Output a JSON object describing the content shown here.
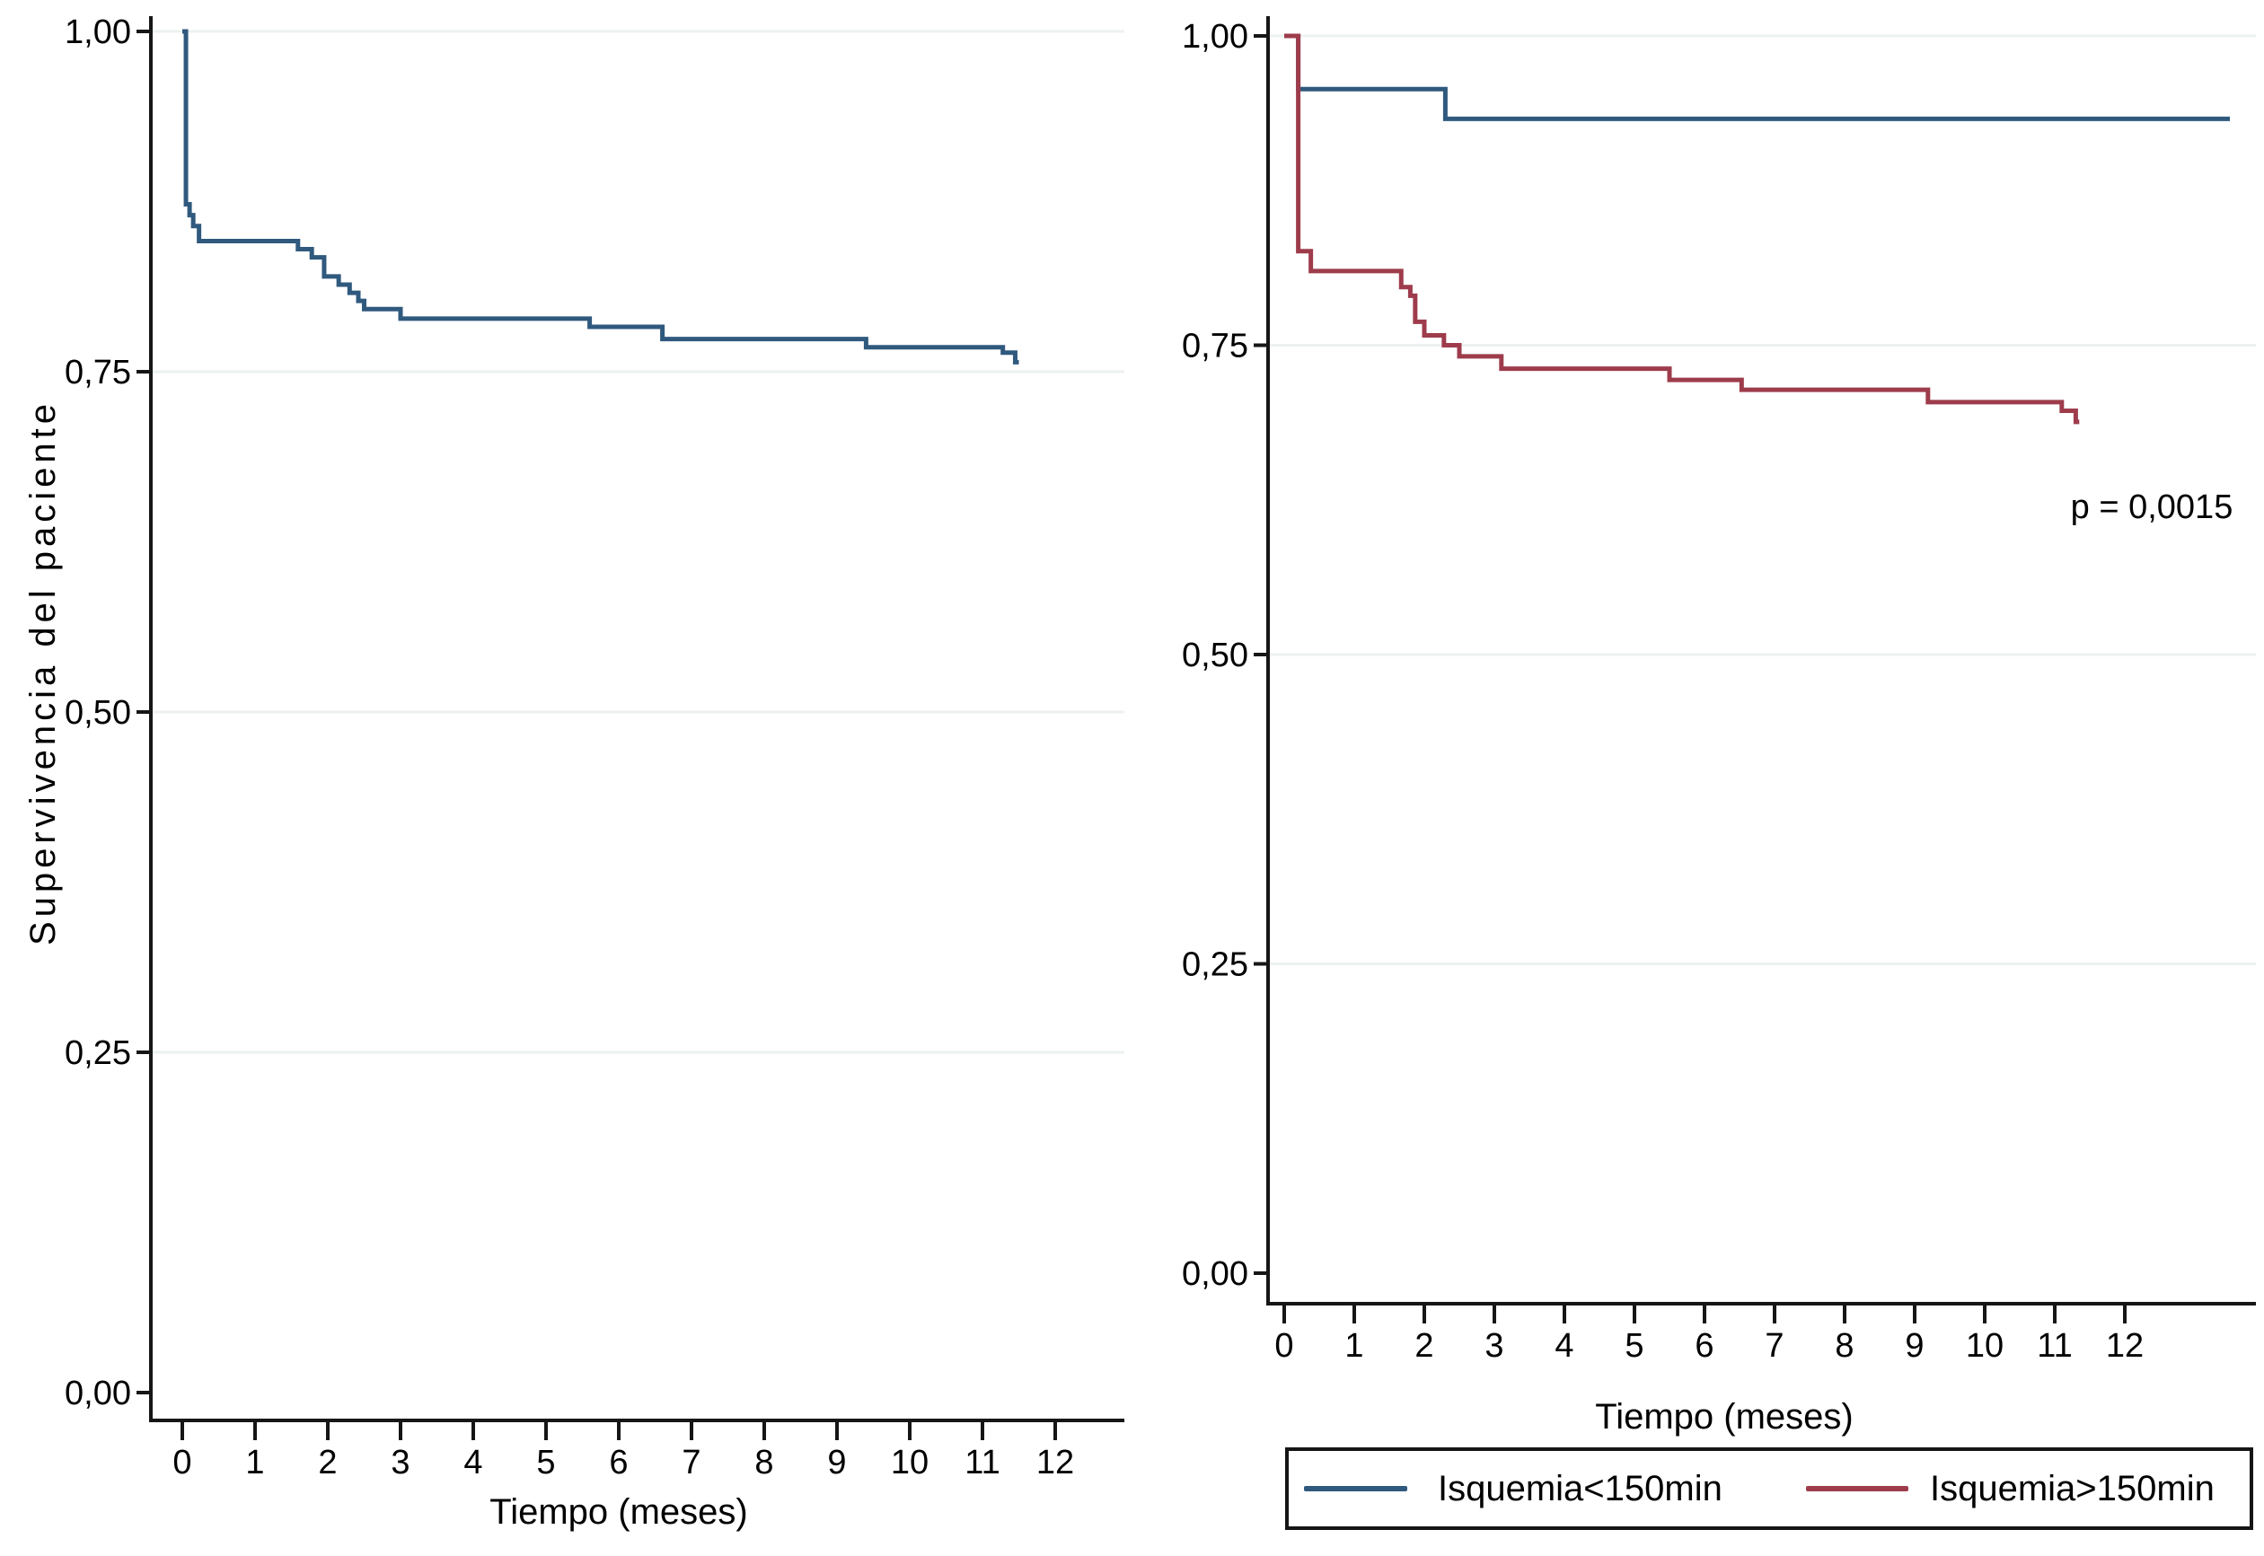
{
  "figure": {
    "background": "#ffffff",
    "axis_color": "#161616",
    "grid_color": "#edf1f0",
    "p_value": "p = 0,0015"
  },
  "chart_data": [
    {
      "type": "line",
      "subtype": "kaplan-meier-step",
      "panel": "left",
      "title": "",
      "xlabel": "Tiempo (meses)",
      "ylabel": "Supervivencia del paciente",
      "xlim": [
        0,
        12.95
      ],
      "ylim": [
        0,
        1.02
      ],
      "grid": true,
      "legend_position": "none",
      "x_ticks": [
        "0",
        "1",
        "2",
        "3",
        "4",
        "5",
        "6",
        "7",
        "8",
        "9",
        "10",
        "11",
        "12"
      ],
      "y_ticks": [
        {
          "label": "1,00",
          "value": 1.0
        },
        {
          "label": "0,75",
          "value": 0.75
        },
        {
          "label": "0,50",
          "value": 0.5
        },
        {
          "label": "0,25",
          "value": 0.25
        },
        {
          "label": "0,00",
          "value": 0.0
        }
      ],
      "series": [
        {
          "name": "Supervivencia del paciente",
          "color": "#30597e",
          "end_x": 11.5,
          "steps": [
            [
              0,
              1.0
            ],
            [
              0.05,
              0.873
            ],
            [
              0.1,
              0.865
            ],
            [
              0.15,
              0.857
            ],
            [
              0.23,
              0.846
            ],
            [
              1.59,
              0.84
            ],
            [
              1.78,
              0.834
            ],
            [
              1.95,
              0.82
            ],
            [
              2.15,
              0.814
            ],
            [
              2.3,
              0.808
            ],
            [
              2.42,
              0.802
            ],
            [
              2.5,
              0.796
            ],
            [
              3.0,
              0.789
            ],
            [
              5.6,
              0.783
            ],
            [
              6.6,
              0.774
            ],
            [
              9.4,
              0.768
            ],
            [
              11.28,
              0.764
            ],
            [
              11.45,
              0.757
            ]
          ]
        }
      ]
    },
    {
      "type": "line",
      "subtype": "kaplan-meier-step",
      "panel": "right",
      "title": "",
      "xlabel": "Tiempo (meses)",
      "ylabel": "",
      "xlim": [
        0,
        13.85
      ],
      "ylim": [
        0,
        1.02
      ],
      "grid": true,
      "annotation": "p = 0,0015",
      "legend_position": "bottom",
      "x_ticks": [
        "0",
        "1",
        "2",
        "3",
        "4",
        "5",
        "6",
        "7",
        "8",
        "9",
        "10",
        "11",
        "12"
      ],
      "y_ticks": [
        {
          "label": "1,00",
          "value": 1.0
        },
        {
          "label": "0,75",
          "value": 0.75
        },
        {
          "label": "0,50",
          "value": 0.5
        },
        {
          "label": "0,25",
          "value": 0.25
        },
        {
          "label": "0,00",
          "value": 0.0
        }
      ],
      "series": [
        {
          "name": "Isquemia<150min",
          "color": "#30597e",
          "end_x": 13.5,
          "steps": [
            [
              0,
              1.0
            ],
            [
              0.2,
              0.957
            ],
            [
              2.3,
              0.933
            ]
          ]
        },
        {
          "name": "Isquemia>150min",
          "color": "#9e3c4c",
          "end_x": 11.35,
          "steps": [
            [
              0,
              1.0
            ],
            [
              0.2,
              0.826
            ],
            [
              0.38,
              0.81
            ],
            [
              1.67,
              0.797
            ],
            [
              1.8,
              0.79
            ],
            [
              1.87,
              0.769
            ],
            [
              2.0,
              0.758
            ],
            [
              2.28,
              0.75
            ],
            [
              2.5,
              0.741
            ],
            [
              3.1,
              0.731
            ],
            [
              5.5,
              0.722
            ],
            [
              6.53,
              0.714
            ],
            [
              9.19,
              0.704
            ],
            [
              11.1,
              0.697
            ],
            [
              11.3,
              0.688
            ]
          ]
        }
      ]
    }
  ],
  "legend": {
    "items": [
      {
        "label": "Isquemia<150min",
        "color": "#30597e"
      },
      {
        "label": "Isquemia>150min",
        "color": "#9e3c4c"
      }
    ]
  }
}
